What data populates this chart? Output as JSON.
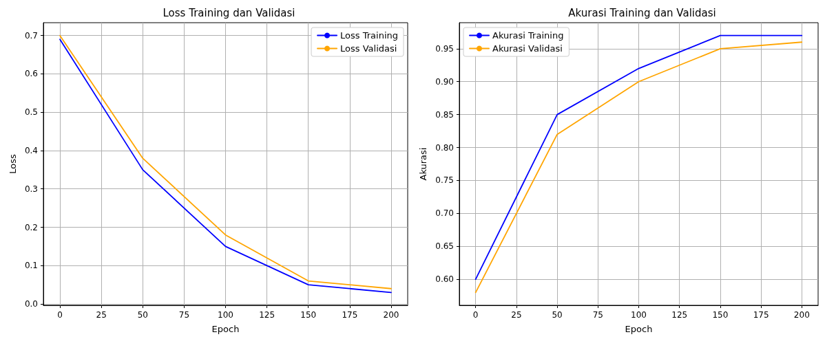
{
  "chart_data": [
    {
      "type": "line",
      "title": "Loss Training dan Validasi",
      "xlabel": "Epoch",
      "ylabel": "Loss",
      "x": [
        0,
        50,
        100,
        150,
        200
      ],
      "series": [
        {
          "name": "Loss Training",
          "color": "#0000ff",
          "values": [
            0.69,
            0.35,
            0.15,
            0.05,
            0.03
          ]
        },
        {
          "name": "Loss Validasi",
          "color": "#ffa500",
          "values": [
            0.7,
            0.38,
            0.18,
            0.06,
            0.04
          ]
        }
      ],
      "xlim": [
        -10,
        210
      ],
      "xticks": [
        0,
        25,
        50,
        75,
        100,
        125,
        150,
        175,
        200
      ],
      "ylim": [
        -0.0035,
        0.7335
      ],
      "yticks": [
        {
          "value": 0,
          "label": "0.0"
        },
        {
          "value": 0.1,
          "label": "0.1"
        },
        {
          "value": 0.2,
          "label": "0.2"
        },
        {
          "value": 0.3,
          "label": "0.3"
        },
        {
          "value": 0.4,
          "label": "0.4"
        },
        {
          "value": 0.5,
          "label": "0.5"
        },
        {
          "value": 0.6,
          "label": "0.6"
        },
        {
          "value": 0.7,
          "label": "0.7"
        }
      ],
      "grid": true,
      "legend": "top right",
      "marker": "none",
      "line_style": "solid"
    },
    {
      "type": "line",
      "title": "Akurasi Training dan Validasi",
      "xlabel": "Epoch",
      "ylabel": "Akurasi",
      "x": [
        0,
        50,
        100,
        150,
        200
      ],
      "series": [
        {
          "name": "Akurasi Training",
          "color": "#0000ff",
          "values": [
            0.6,
            0.85,
            0.92,
            0.97,
            0.97
          ]
        },
        {
          "name": "Akurasi Validasi",
          "color": "#ffa500",
          "values": [
            0.58,
            0.82,
            0.9,
            0.95,
            0.96
          ]
        }
      ],
      "xlim": [
        -10,
        210
      ],
      "xticks": [
        0,
        25,
        50,
        75,
        100,
        125,
        150,
        175,
        200
      ],
      "ylim": [
        0.5605,
        0.9895
      ],
      "yticks": [
        {
          "value": 0.6,
          "label": "0.60"
        },
        {
          "value": 0.65,
          "label": "0.65"
        },
        {
          "value": 0.7,
          "label": "0.70"
        },
        {
          "value": 0.75,
          "label": "0.75"
        },
        {
          "value": 0.8,
          "label": "0.80"
        },
        {
          "value": 0.85,
          "label": "0.85"
        },
        {
          "value": 0.9,
          "label": "0.90"
        },
        {
          "value": 0.95,
          "label": "0.95"
        }
      ],
      "grid": true,
      "legend": "top left",
      "marker": "none",
      "line_style": "solid"
    }
  ]
}
